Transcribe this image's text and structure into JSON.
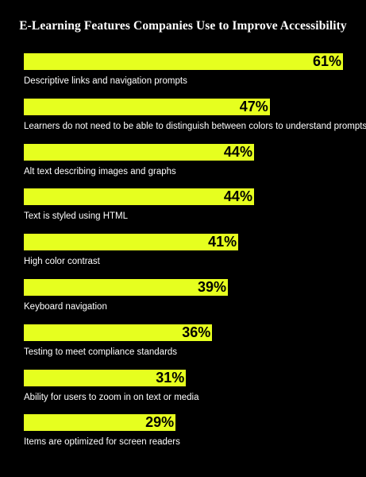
{
  "chart_data": {
    "type": "bar",
    "orientation": "horizontal",
    "title": "E-Learning Features Companies Use to Improve Accessibility",
    "categories": [
      "Descriptive links and navigation prompts",
      "Learners do not need to be able to distinguish between colors to understand prompts",
      "Alt text describing images and graphs",
      "Text is styled using HTML",
      "High color contrast",
      "Keyboard navigation",
      "Testing to meet compliance standards",
      "Ability for users to zoom in on text or media",
      "Items are optimized for screen readers"
    ],
    "values": [
      61,
      47,
      44,
      44,
      41,
      39,
      36,
      31,
      29
    ],
    "value_labels": [
      "61%",
      "47%",
      "44%",
      "44%",
      "41%",
      "39%",
      "36%",
      "31%",
      "29%"
    ],
    "xlim": [
      0,
      61
    ],
    "grid": false,
    "legend": "none",
    "colors": {
      "background": "#000000",
      "bar": "#e6ff1f",
      "value_text": "#000000",
      "label_text": "#ffffff",
      "title_text": "#ffffff"
    }
  }
}
